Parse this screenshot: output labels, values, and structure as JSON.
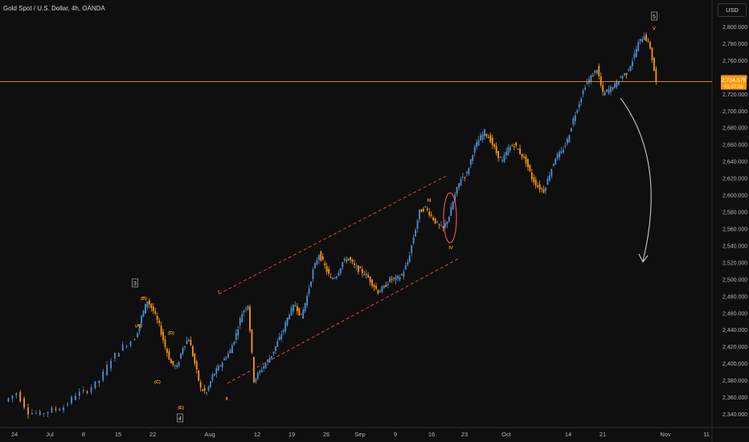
{
  "header": {
    "title": "Gold Spot / U.S. Dollar, 4h, OANDA",
    "currency_button": "USD"
  },
  "colors": {
    "background": "#0f0f0f",
    "up_candle": "#4c8fd6",
    "down_candle": "#ff9800",
    "axis_text": "#b2b5be",
    "channel_line": "#e0533a",
    "annotation": "#ff9800",
    "price_line": "#ff9800",
    "arrow": "#c8c8c8"
  },
  "chart_data": {
    "type": "candlestick",
    "ylim": [
      2330,
      2820
    ],
    "y_ticks": [
      2340,
      2360,
      2380,
      2400,
      2420,
      2440,
      2460,
      2480,
      2500,
      2520,
      2540,
      2560,
      2580,
      2600,
      2620,
      2640,
      2660,
      2680,
      2700,
      2720,
      2740,
      2760,
      2780,
      2800
    ],
    "y_tick_labels": [
      "2,340.000",
      "2,360.000",
      "2,380.000",
      "2,400.000",
      "2,420.000",
      "2,440.000",
      "2,460.000",
      "2,480.000",
      "2,500.000",
      "2,520.000",
      "2,540.000",
      "2,560.000",
      "2,580.000",
      "2,600.000",
      "2,620.000",
      "2,640.000",
      "2,660.000",
      "2,680.000",
      "2,700.000",
      "2,720.000",
      "2,740.000",
      "2,760.000",
      "2,780.000",
      "2,800.000"
    ],
    "x_axis_labels": [
      "24",
      "Jul",
      "8",
      "15",
      "22",
      "Aug",
      "12",
      "19",
      "26",
      "Sep",
      "9",
      "16",
      "23",
      "Oct",
      "14",
      "21",
      "Nov",
      "11"
    ],
    "current_price": {
      "value": "2,734.575",
      "countdown": "01:47:08",
      "level": 2734.575
    },
    "price_path": [
      [
        0,
        2355
      ],
      [
        2,
        2365
      ],
      [
        4,
        2342
      ],
      [
        6,
        2340
      ],
      [
        8,
        2345
      ],
      [
        10,
        2348
      ],
      [
        12,
        2363
      ],
      [
        14,
        2368
      ],
      [
        16,
        2380
      ],
      [
        18,
        2405
      ],
      [
        20,
        2420
      ],
      [
        22,
        2430
      ],
      [
        23,
        2455
      ],
      [
        24,
        2475
      ],
      [
        25,
        2462
      ],
      [
        26,
        2445
      ],
      [
        27,
        2420
      ],
      [
        28,
        2400
      ],
      [
        29,
        2395
      ],
      [
        30,
        2420
      ],
      [
        31,
        2430
      ],
      [
        32,
        2400
      ],
      [
        33,
        2370
      ],
      [
        34,
        2365
      ],
      [
        35,
        2385
      ],
      [
        36,
        2395
      ],
      [
        37,
        2405
      ],
      [
        38,
        2415
      ],
      [
        39,
        2435
      ],
      [
        40,
        2460
      ],
      [
        41,
        2470
      ],
      [
        42,
        2380
      ],
      [
        43,
        2390
      ],
      [
        44,
        2400
      ],
      [
        45,
        2410
      ],
      [
        46,
        2425
      ],
      [
        47,
        2440
      ],
      [
        48,
        2460
      ],
      [
        49,
        2470
      ],
      [
        50,
        2455
      ],
      [
        51,
        2480
      ],
      [
        52,
        2510
      ],
      [
        53,
        2530
      ],
      [
        54,
        2515
      ],
      [
        55,
        2500
      ],
      [
        56,
        2505
      ],
      [
        57,
        2520
      ],
      [
        58,
        2525
      ],
      [
        59,
        2515
      ],
      [
        60,
        2510
      ],
      [
        61,
        2505
      ],
      [
        62,
        2495
      ],
      [
        63,
        2485
      ],
      [
        64,
        2490
      ],
      [
        65,
        2500
      ],
      [
        66,
        2500
      ],
      [
        67,
        2505
      ],
      [
        68,
        2520
      ],
      [
        69,
        2550
      ],
      [
        70,
        2580
      ],
      [
        71,
        2585
      ],
      [
        72,
        2575
      ],
      [
        73,
        2565
      ],
      [
        74,
        2560
      ],
      [
        75,
        2575
      ],
      [
        76,
        2600
      ],
      [
        77,
        2620
      ],
      [
        78,
        2625
      ],
      [
        79,
        2650
      ],
      [
        80,
        2665
      ],
      [
        81,
        2675
      ],
      [
        82,
        2665
      ],
      [
        83,
        2650
      ],
      [
        84,
        2640
      ],
      [
        85,
        2655
      ],
      [
        86,
        2660
      ],
      [
        87,
        2650
      ],
      [
        88,
        2640
      ],
      [
        89,
        2620
      ],
      [
        90,
        2610
      ],
      [
        91,
        2605
      ],
      [
        92,
        2625
      ],
      [
        93,
        2645
      ],
      [
        94,
        2650
      ],
      [
        95,
        2665
      ],
      [
        96,
        2690
      ],
      [
        97,
        2710
      ],
      [
        98,
        2730
      ],
      [
        99,
        2740
      ],
      [
        100,
        2750
      ],
      [
        101,
        2720
      ],
      [
        102,
        2725
      ],
      [
        103,
        2730
      ],
      [
        104,
        2740
      ],
      [
        105,
        2745
      ],
      [
        106,
        2760
      ],
      [
        107,
        2780
      ],
      [
        108,
        2790
      ],
      [
        109,
        2775
      ],
      [
        110,
        2734
      ]
    ],
    "annotations": {
      "wave_boxes": [
        "3",
        "4",
        "5"
      ],
      "wave_labels": [
        "(A)",
        "(B)",
        "(C)",
        "(D)",
        "(E)",
        "I",
        "II",
        "III",
        "IV",
        "V"
      ]
    }
  }
}
